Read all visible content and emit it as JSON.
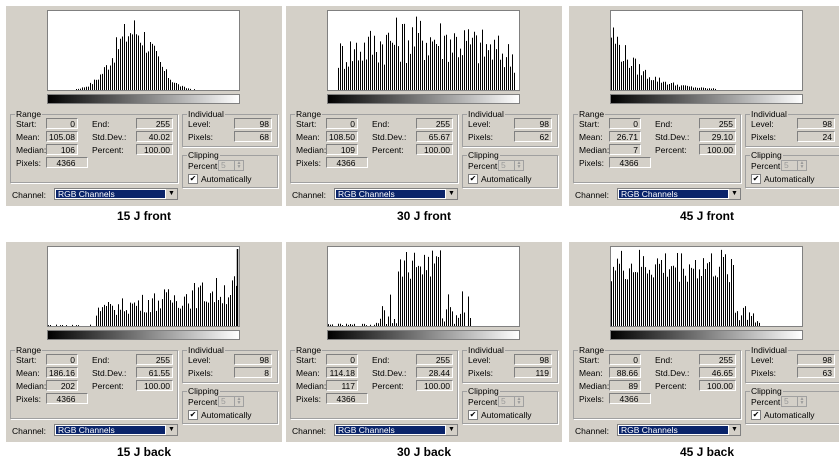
{
  "labels": {
    "range": "Range",
    "start": "Start:",
    "end": "End:",
    "mean": "Mean:",
    "std_dev": "Std.Dev.:",
    "median": "Median:",
    "percent": "Percent:",
    "pixels": "Pixels:",
    "individual": "Individual",
    "level": "Level:",
    "ind_pixels": "Pixels:",
    "clipping": "Clipping",
    "clip_percent": "Percent:",
    "automatically": "Automatically",
    "channel": "Channel:"
  },
  "panels": [
    {
      "caption": "15 J front",
      "start": "0",
      "end": "255",
      "mean": "105.08",
      "std_dev": "40.02",
      "median": "106",
      "percent": "100.00",
      "pixels": "4366",
      "level": "98",
      "ind_pixels": "68",
      "clip_percent": "5",
      "channel": "RGB Channels",
      "automatically_checked": true
    },
    {
      "caption": "30 J front",
      "start": "0",
      "end": "255",
      "mean": "108.50",
      "std_dev": "65.67",
      "median": "109",
      "percent": "100.00",
      "pixels": "4366",
      "level": "98",
      "ind_pixels": "62",
      "clip_percent": "5",
      "channel": "RGB Channels",
      "automatically_checked": true
    },
    {
      "caption": "45 J front",
      "start": "0",
      "end": "255",
      "mean": "26.71",
      "std_dev": "29.10",
      "median": "7",
      "percent": "100.00",
      "pixels": "4366",
      "level": "98",
      "ind_pixels": "24",
      "clip_percent": "5",
      "channel": "RGB Channels",
      "automatically_checked": true
    },
    {
      "caption": "15 J back",
      "start": "0",
      "end": "255",
      "mean": "186.16",
      "std_dev": "61.55",
      "median": "202",
      "percent": "100.00",
      "pixels": "4366",
      "level": "98",
      "ind_pixels": "8",
      "clip_percent": "5",
      "channel": "RGB Channels",
      "automatically_checked": true
    },
    {
      "caption": "30 J back",
      "start": "0",
      "end": "255",
      "mean": "114.18",
      "std_dev": "28.44",
      "median": "117",
      "percent": "100.00",
      "pixels": "4366",
      "level": "98",
      "ind_pixels": "119",
      "clip_percent": "5",
      "channel": "RGB Channels",
      "automatically_checked": true
    },
    {
      "caption": "45 J back",
      "start": "0",
      "end": "255",
      "mean": "88.66",
      "std_dev": "46.65",
      "median": "89",
      "percent": "100.00",
      "pixels": "4366",
      "level": "98",
      "ind_pixels": "63",
      "clip_percent": "5",
      "channel": "RGB Channels",
      "automatically_checked": true
    }
  ],
  "colors": {
    "dialog": "#d4d0c8",
    "selection": "#0a246a",
    "histogram_bar": "#000000"
  }
}
